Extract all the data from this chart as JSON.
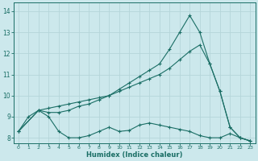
{
  "xlabel": "Humidex (Indice chaleur)",
  "bg_color": "#cce8ec",
  "grid_color": "#b8d8dc",
  "line_color": "#1a6e65",
  "xlim": [
    -0.5,
    23.5
  ],
  "ylim": [
    7.75,
    14.4
  ],
  "xticks": [
    0,
    1,
    2,
    3,
    4,
    5,
    6,
    7,
    8,
    9,
    10,
    11,
    12,
    13,
    14,
    15,
    16,
    17,
    18,
    19,
    20,
    21,
    22,
    23
  ],
  "yticks": [
    8,
    9,
    10,
    11,
    12,
    13,
    14
  ],
  "line1_x": [
    0,
    1,
    2,
    3,
    4,
    5,
    6,
    7,
    8,
    9,
    10,
    11,
    12,
    13,
    14,
    15,
    16,
    17,
    18,
    19,
    20,
    21,
    22,
    23
  ],
  "line1_y": [
    8.3,
    9.0,
    9.3,
    9.0,
    8.3,
    8.0,
    8.0,
    8.1,
    8.3,
    8.5,
    8.3,
    8.35,
    8.6,
    8.7,
    8.6,
    8.5,
    8.4,
    8.3,
    8.1,
    8.0,
    8.0,
    8.2,
    8.0,
    7.85
  ],
  "line2_x": [
    0,
    2,
    3,
    4,
    5,
    6,
    7,
    8,
    9,
    10,
    11,
    12,
    13,
    14,
    15,
    16,
    17,
    18,
    19,
    20,
    21,
    22,
    23
  ],
  "line2_y": [
    8.3,
    9.3,
    9.4,
    9.5,
    9.6,
    9.7,
    9.8,
    9.9,
    10.0,
    10.2,
    10.4,
    10.6,
    10.8,
    11.0,
    11.3,
    11.7,
    12.1,
    12.4,
    11.5,
    10.2,
    8.5,
    8.0,
    7.85
  ],
  "line3_x": [
    0,
    2,
    3,
    4,
    5,
    6,
    7,
    8,
    9,
    10,
    11,
    12,
    13,
    14,
    15,
    16,
    17,
    18,
    19,
    20,
    21,
    22,
    23
  ],
  "line3_y": [
    8.3,
    9.3,
    9.2,
    9.2,
    9.3,
    9.5,
    9.6,
    9.8,
    10.0,
    10.3,
    10.6,
    10.9,
    11.2,
    11.5,
    12.2,
    13.0,
    13.8,
    13.0,
    11.5,
    10.2,
    8.5,
    8.0,
    7.85
  ]
}
